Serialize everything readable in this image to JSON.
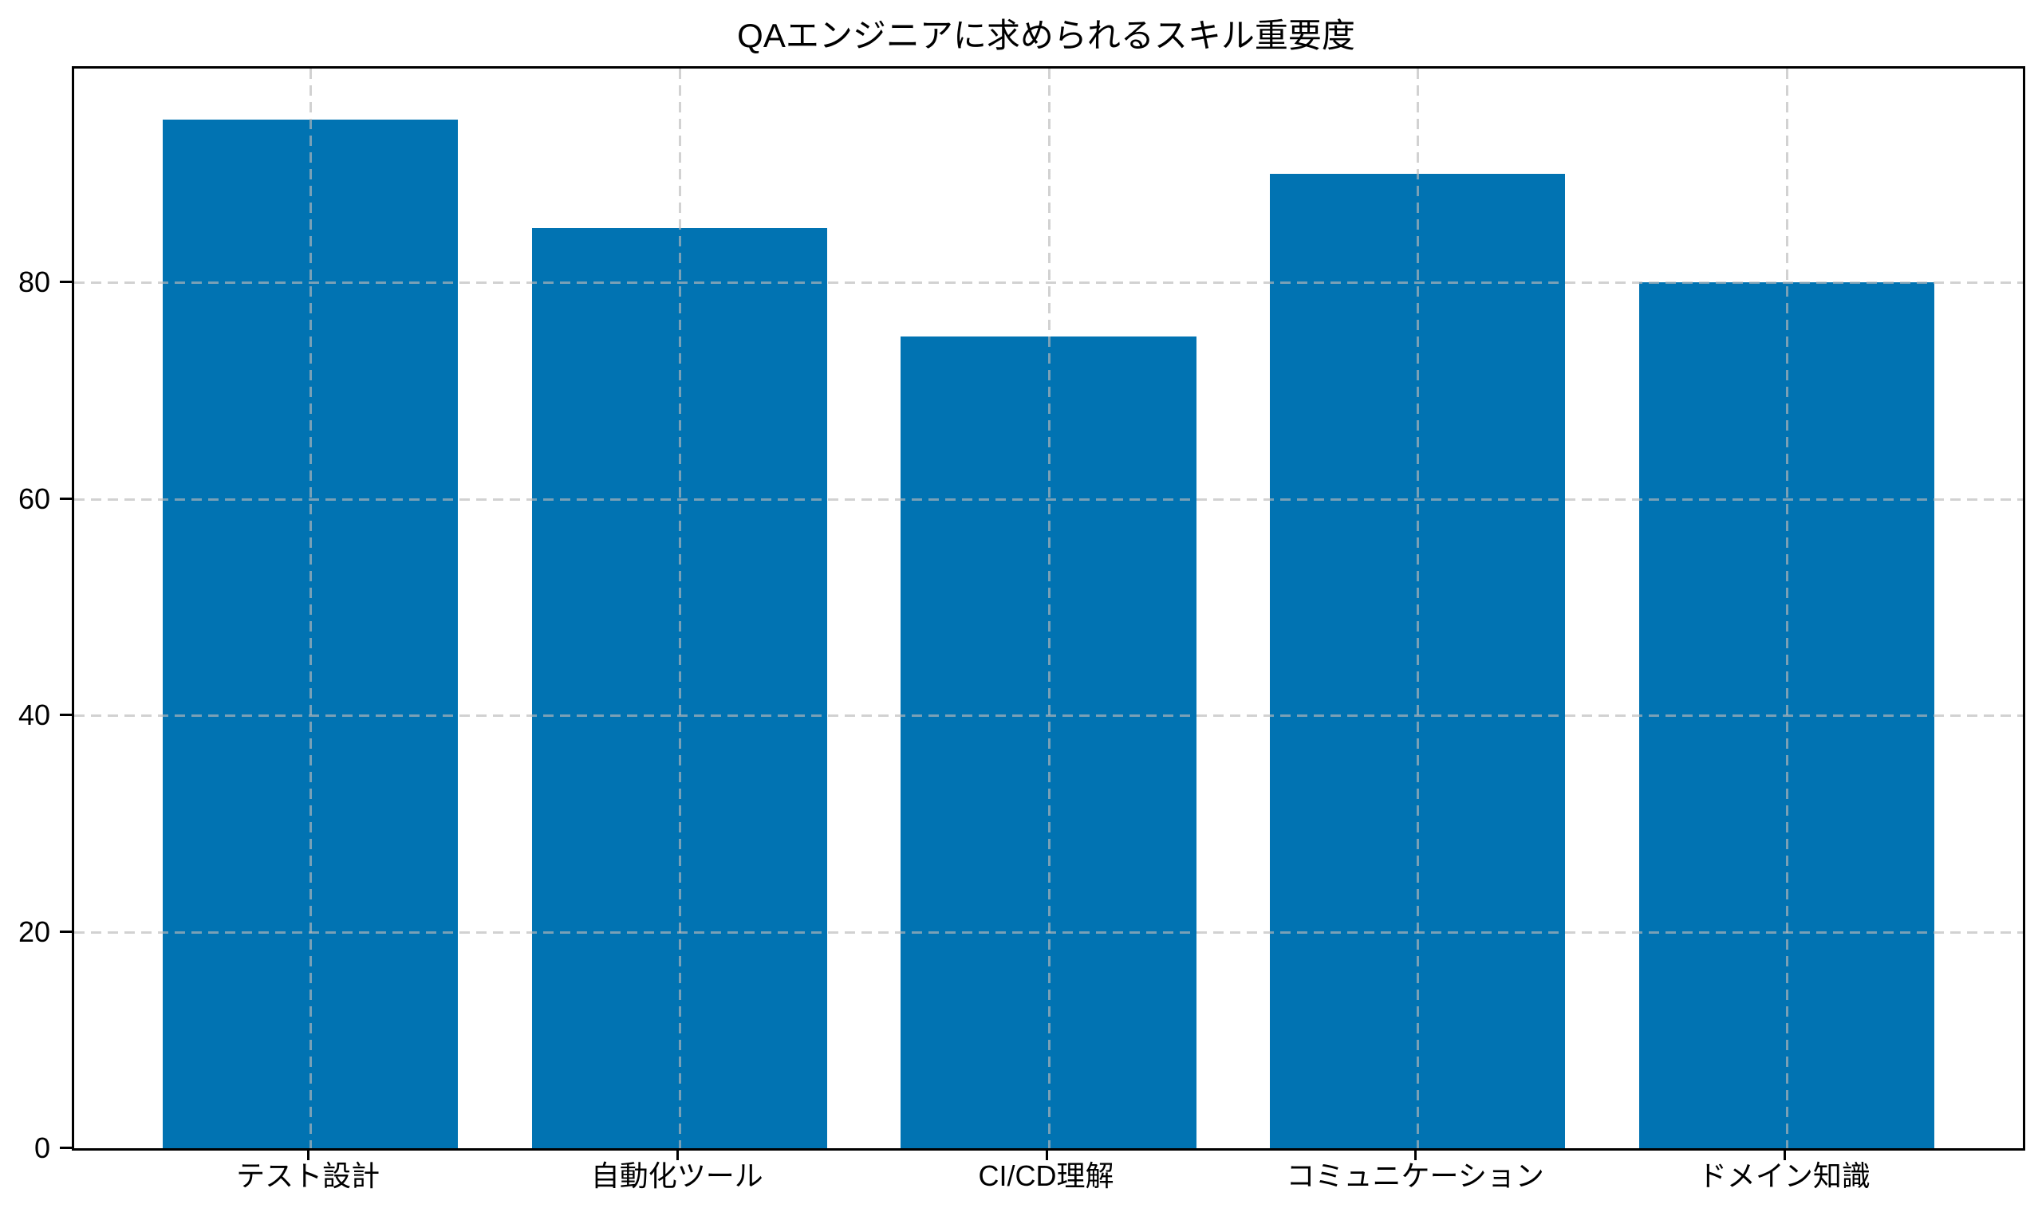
{
  "chart_data": {
    "type": "bar",
    "title": "QAエンジニアに求められるスキル重要度",
    "categories": [
      "テスト設計",
      "自動化ツール",
      "CI/CD理解",
      "コミュニケーション",
      "ドメイン知識"
    ],
    "values": [
      95,
      85,
      75,
      90,
      80
    ],
    "xlabel": "",
    "ylabel": "",
    "ytick_labels": [
      "0",
      "20",
      "40",
      "60",
      "80"
    ],
    "yticks": [
      0,
      20,
      40,
      60,
      80
    ],
    "ylim": [
      0,
      99.75
    ],
    "bar_width_fraction": 0.8,
    "legend_position": "none",
    "grid": {
      "visible": true,
      "axis": "both",
      "style": "dashed",
      "drawn_above_bars": true
    },
    "colors": {
      "bar_fill": "#0173b2",
      "grid_rgba": "rgba(185,185,185,0.65)",
      "spine": "#000000",
      "text": "#000000",
      "background": "#ffffff"
    }
  }
}
